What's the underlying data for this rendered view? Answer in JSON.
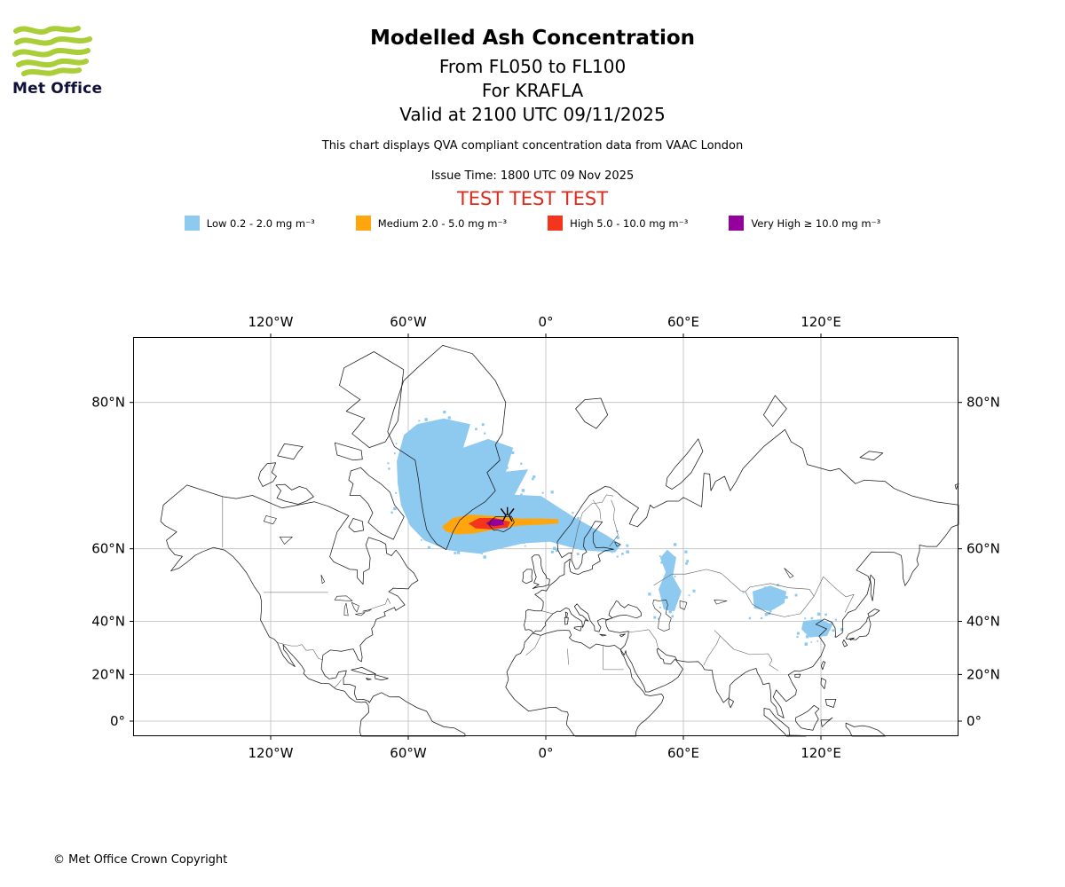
{
  "logo": {
    "text": "Met Office",
    "wave_color": "#a9ce38",
    "text_color": "#10103c"
  },
  "header": {
    "title": "Modelled Ash Concentration",
    "subtitle_flight_levels": "From FL050 to FL100",
    "subtitle_volcano": "For KRAFLA",
    "subtitle_valid": "Valid at 2100 UTC 09/11/2025",
    "note": "This chart displays QVA compliant concentration data from VAAC London",
    "issue_time": "Issue Time: 1800 UTC 09 Nov 2025",
    "test_banner": "TEST TEST TEST",
    "test_banner_color": "#dc2a1c"
  },
  "legend": {
    "items": [
      {
        "id": "low",
        "label": "Low 0.2 - 2.0 mg m⁻³",
        "color": "#8ec9f0"
      },
      {
        "id": "medium",
        "label": "Medium 2.0 - 5.0 mg m⁻³",
        "color": "#ffa60f"
      },
      {
        "id": "high",
        "label": "High 5.0 - 10.0 mg m⁻³",
        "color": "#f4351b"
      },
      {
        "id": "very_high",
        "label": "Very High ≥ 10.0 mg m⁻³",
        "color": "#93009b"
      }
    ]
  },
  "chart_data": {
    "type": "map",
    "projection": "mercator",
    "extent": {
      "lon_min": -180,
      "lon_max": 180,
      "lat_min": -6.6,
      "lat_max": 84
    },
    "gridlines": true,
    "title": "Modelled Ash Concentration",
    "axes": {
      "lon_ticks": [
        {
          "label": "120°W",
          "lon": -120
        },
        {
          "label": "60°W",
          "lon": -60
        },
        {
          "label": "0°",
          "lon": 0
        },
        {
          "label": "60°E",
          "lon": 60
        },
        {
          "label": "120°E",
          "lon": 120
        }
      ],
      "lat_ticks": [
        {
          "label": "80°N",
          "lat": 80
        },
        {
          "label": "60°N",
          "lat": 60
        },
        {
          "label": "40°N",
          "lat": 40
        },
        {
          "label": "20°N",
          "lat": 20
        },
        {
          "label": "0°",
          "lat": 0
        }
      ]
    },
    "volcano": {
      "name": "KRAFLA",
      "lon": -16.75,
      "lat": 65.73
    },
    "regions": [
      {
        "level": "low",
        "name": "main-plume-north-atlantic",
        "polygon": [
          [
            -65,
            74.4
          ],
          [
            -61.9,
            77.2
          ],
          [
            -56.1,
            78.2
          ],
          [
            -44.5,
            78.7
          ],
          [
            -32.9,
            78.2
          ],
          [
            -36,
            75.9
          ],
          [
            -25.2,
            76.8
          ],
          [
            -14.3,
            75.9
          ],
          [
            -17.4,
            73.1
          ],
          [
            -7.7,
            73.4
          ],
          [
            -13.6,
            69.9
          ],
          [
            -2,
            69.7
          ],
          [
            11.6,
            66.4
          ],
          [
            26.3,
            62.9
          ],
          [
            32.9,
            60.9
          ],
          [
            30.2,
            59.2
          ],
          [
            15.5,
            59.7
          ],
          [
            1.9,
            61.5
          ],
          [
            -9.7,
            61.2
          ],
          [
            -19.4,
            60.1
          ],
          [
            -29,
            58.9
          ],
          [
            -42.6,
            59.7
          ],
          [
            -53,
            61.8
          ],
          [
            -59.2,
            64.7
          ],
          [
            -63.1,
            68.2
          ],
          [
            -64.6,
            71.5
          ]
        ]
      },
      {
        "level": "low",
        "name": "patch-urals",
        "polygon": [
          [
            53,
            59.8
          ],
          [
            56.9,
            58
          ],
          [
            55.4,
            53.4
          ],
          [
            59.2,
            49.3
          ],
          [
            56.1,
            43.3
          ],
          [
            51.5,
            43.8
          ],
          [
            49.2,
            49.9
          ],
          [
            52.3,
            54.5
          ],
          [
            49.9,
            58
          ]
        ]
      },
      {
        "level": "low",
        "name": "patch-altai",
        "polygon": [
          [
            90.2,
            49.3
          ],
          [
            97.9,
            50.9
          ],
          [
            104.9,
            49.3
          ],
          [
            104.1,
            45.9
          ],
          [
            97.9,
            43.3
          ],
          [
            90.9,
            44.2
          ]
        ]
      },
      {
        "level": "low",
        "name": "patch-yellow-sea",
        "polygon": [
          [
            112.3,
            40.1
          ],
          [
            120,
            40.7
          ],
          [
            125,
            38.8
          ],
          [
            122.7,
            34.9
          ],
          [
            115,
            34.4
          ],
          [
            111.5,
            37.3
          ]
        ]
      },
      {
        "level": "medium",
        "name": "medium-band-iceland",
        "polygon": [
          [
            -45.3,
            64.5
          ],
          [
            -40.6,
            66.1
          ],
          [
            -32.9,
            66.7
          ],
          [
            -21.3,
            66.4
          ],
          [
            -11.6,
            66
          ],
          [
            -1.2,
            66
          ],
          [
            5.5,
            65.9
          ],
          [
            5.5,
            65.1
          ],
          [
            -1.2,
            64.9
          ],
          [
            -11.6,
            64.7
          ],
          [
            -22.1,
            64
          ],
          [
            -31,
            63.2
          ],
          [
            -38.7,
            63
          ],
          [
            -43.7,
            63.6
          ]
        ]
      },
      {
        "level": "high",
        "name": "high-core",
        "polygon": [
          [
            -33.7,
            65.1
          ],
          [
            -29,
            66.1
          ],
          [
            -22.1,
            66.1
          ],
          [
            -15.5,
            65.4
          ],
          [
            -16.7,
            64.3
          ],
          [
            -24.4,
            64
          ],
          [
            -30.6,
            64.2
          ]
        ]
      },
      {
        "level": "very_high",
        "name": "very-high-core",
        "polygon": [
          [
            -26,
            65.2
          ],
          [
            -22.8,
            65.9
          ],
          [
            -19,
            65.8
          ],
          [
            -18.2,
            64.9
          ],
          [
            -22.1,
            64.6
          ],
          [
            -25.2,
            64.8
          ]
        ]
      }
    ]
  },
  "footer": {
    "copyright": "© Met Office Crown Copyright"
  }
}
